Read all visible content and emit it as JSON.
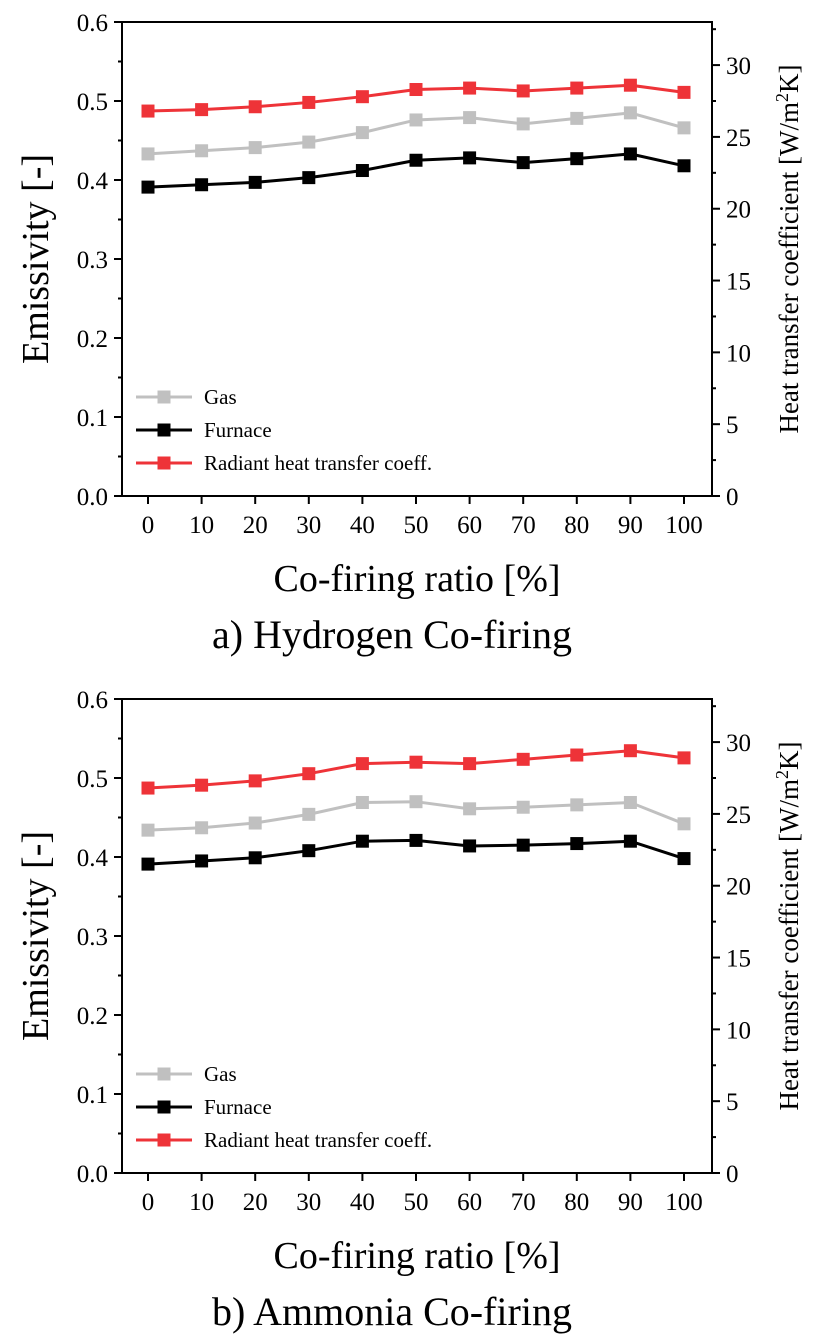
{
  "colors": {
    "gas": "#c0c0c0",
    "furnace": "#000000",
    "radiant": "#ee3338",
    "axis": "#000000"
  },
  "chart_data": [
    {
      "type": "line",
      "caption": "a) Hydrogen Co-firing",
      "xlabel": "Co-firing ratio [%]",
      "ylabel": "Emissivity [-]",
      "ylabel_right_prefix": "Heat transfer coefficient [W/m",
      "ylabel_right_sup": "2",
      "ylabel_right_suffix": "K]",
      "ylim": [
        0,
        0.6
      ],
      "ylim_right": [
        0,
        33
      ],
      "yticks": [
        "0.0",
        "0.1",
        "0.2",
        "0.3",
        "0.4",
        "0.5",
        "0.6"
      ],
      "yticks_right": [
        "0",
        "5",
        "10",
        "15",
        "20",
        "25",
        "30"
      ],
      "categories": [
        "0",
        "10",
        "20",
        "30",
        "40",
        "50",
        "60",
        "70",
        "80",
        "90",
        "100"
      ],
      "legend_position": "bottom-left",
      "series": [
        {
          "name": "Gas",
          "axis": "left",
          "color_key": "gas",
          "values": [
            0.433,
            0.437,
            0.441,
            0.448,
            0.46,
            0.476,
            0.479,
            0.471,
            0.478,
            0.485,
            0.466
          ]
        },
        {
          "name": "Furnace",
          "axis": "left",
          "color_key": "furnace",
          "values": [
            0.391,
            0.394,
            0.397,
            0.403,
            0.412,
            0.425,
            0.428,
            0.422,
            0.427,
            0.433,
            0.418
          ]
        },
        {
          "name": "Radiant heat transfer coeff.",
          "axis": "right",
          "color_key": "radiant",
          "values": [
            26.8,
            26.9,
            27.1,
            27.4,
            27.8,
            28.3,
            28.4,
            28.2,
            28.4,
            28.6,
            28.1
          ]
        }
      ]
    },
    {
      "type": "line",
      "caption": "b) Ammonia Co-firing",
      "xlabel": "Co-firing ratio [%]",
      "ylabel": "Emissivity [-]",
      "ylabel_right_prefix": "Heat transfer coefficient [W/m",
      "ylabel_right_sup": "2",
      "ylabel_right_suffix": "K]",
      "ylim": [
        0,
        0.6
      ],
      "ylim_right": [
        0,
        33
      ],
      "yticks": [
        "0.0",
        "0.1",
        "0.2",
        "0.3",
        "0.4",
        "0.5",
        "0.6"
      ],
      "yticks_right": [
        "0",
        "5",
        "10",
        "15",
        "20",
        "25",
        "30"
      ],
      "categories": [
        "0",
        "10",
        "20",
        "30",
        "40",
        "50",
        "60",
        "70",
        "80",
        "90",
        "100"
      ],
      "legend_position": "bottom-left",
      "series": [
        {
          "name": "Gas",
          "axis": "left",
          "color_key": "gas",
          "values": [
            0.434,
            0.437,
            0.443,
            0.454,
            0.469,
            0.47,
            0.461,
            0.463,
            0.466,
            0.469,
            0.442
          ]
        },
        {
          "name": "Furnace",
          "axis": "left",
          "color_key": "furnace",
          "values": [
            0.391,
            0.395,
            0.399,
            0.408,
            0.42,
            0.421,
            0.414,
            0.415,
            0.417,
            0.42,
            0.398
          ]
        },
        {
          "name": "Radiant heat transfer coeff.",
          "axis": "right",
          "color_key": "radiant",
          "values": [
            26.8,
            27.0,
            27.3,
            27.8,
            28.5,
            28.6,
            28.5,
            28.8,
            29.1,
            29.4,
            28.9
          ]
        }
      ]
    }
  ]
}
